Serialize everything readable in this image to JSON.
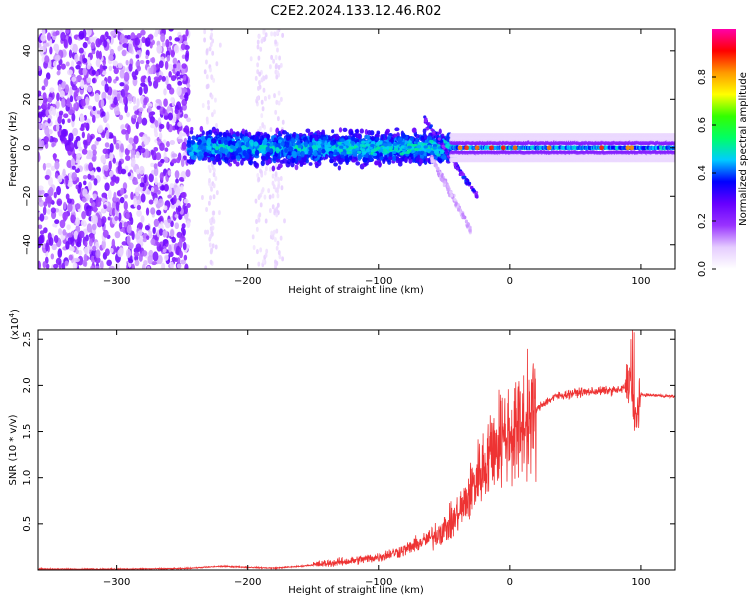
{
  "title": "C2E2.2024.133.12.46.R02",
  "chart_data": [
    {
      "type": "heatmap",
      "xlabel": "Height of straight line (km)",
      "ylabel": "Frequency (Hz)",
      "xlim": [
        -360,
        126
      ],
      "ylim": [
        -50,
        49
      ],
      "xticks": [
        -300,
        -200,
        -100,
        0,
        100
      ],
      "yticks": [
        -40,
        -20,
        0,
        20,
        40
      ],
      "colorbar": {
        "label": "Normalized spectral amplitude",
        "range": [
          0,
          1
        ],
        "ticks": [
          0.0,
          0.2,
          0.4,
          0.6,
          0.8
        ],
        "colormap": [
          "#ffffff",
          "#e5ccff",
          "#9933ff",
          "#6600ff",
          "#0000ff",
          "#00ccff",
          "#00ff66",
          "#33ff00",
          "#ffff00",
          "#ff9900",
          "#ff0000",
          "#ff00aa"
        ]
      },
      "regions": [
        {
          "x": [
            -360,
            -245
          ],
          "freq_spread": 49,
          "amplitude": 0.12
        },
        {
          "x": [
            -245,
            -45
          ],
          "freq_spread": 10,
          "amplitude": 0.3
        },
        {
          "x": [
            -45,
            126
          ],
          "freq_center": 0,
          "freq_spread": 4,
          "amplitude": 0.45
        }
      ]
    },
    {
      "type": "line",
      "xlabel": "Height of straight line (km)",
      "ylabel": "SNR (10 * v/v)",
      "scale_label": "(x10",
      "scale_exponent": "4",
      "scale_close": ")",
      "xlim": [
        -360,
        126
      ],
      "ylim": [
        0,
        2.6
      ],
      "xticks": [
        -300,
        -200,
        -100,
        0,
        100
      ],
      "yticks": [
        0.5,
        1.0,
        1.5,
        2.0,
        2.5
      ],
      "color": "#ee3333",
      "points": [
        [
          -360,
          0.01
        ],
        [
          -300,
          0.01
        ],
        [
          -250,
          0.015
        ],
        [
          -220,
          0.04
        ],
        [
          -200,
          0.03
        ],
        [
          -180,
          0.02
        ],
        [
          -160,
          0.04
        ],
        [
          -140,
          0.07
        ],
        [
          -120,
          0.1
        ],
        [
          -100,
          0.14
        ],
        [
          -80,
          0.22
        ],
        [
          -60,
          0.35
        ],
        [
          -45,
          0.5
        ],
        [
          -35,
          0.7
        ],
        [
          -25,
          1.0
        ],
        [
          -15,
          1.3
        ],
        [
          -5,
          1.45
        ],
        [
          5,
          1.5
        ],
        [
          15,
          1.65
        ],
        [
          25,
          1.8
        ],
        [
          35,
          1.88
        ],
        [
          50,
          1.92
        ],
        [
          70,
          1.94
        ],
        [
          85,
          1.95
        ],
        [
          92,
          2.05
        ],
        [
          95,
          1.6
        ],
        [
          100,
          1.9
        ],
        [
          126,
          1.88
        ]
      ]
    }
  ]
}
